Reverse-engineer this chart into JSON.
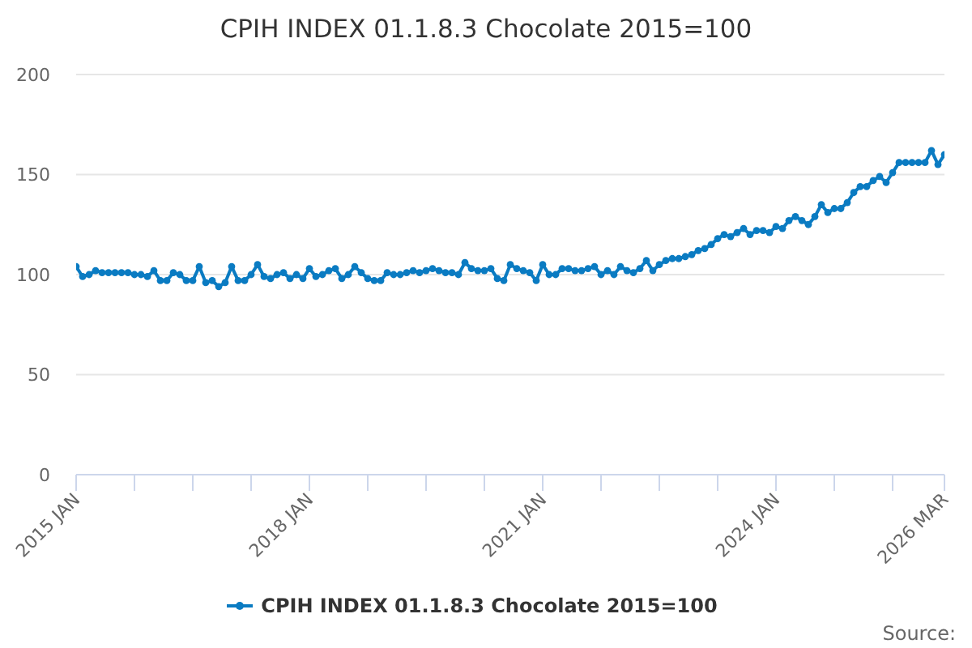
{
  "chart_data": {
    "type": "line",
    "title": "CPIH INDEX 01.1.8.3 Chocolate 2015=100",
    "x": [
      "2015-01",
      "2015-02",
      "2015-03",
      "2015-04",
      "2015-05",
      "2015-06",
      "2015-07",
      "2015-08",
      "2015-09",
      "2015-10",
      "2015-11",
      "2015-12",
      "2016-01",
      "2016-02",
      "2016-03",
      "2016-04",
      "2016-05",
      "2016-06",
      "2016-07",
      "2016-08",
      "2016-09",
      "2016-10",
      "2016-11",
      "2016-12",
      "2017-01",
      "2017-02",
      "2017-03",
      "2017-04",
      "2017-05",
      "2017-06",
      "2017-07",
      "2017-08",
      "2017-09",
      "2017-10",
      "2017-11",
      "2017-12",
      "2018-01",
      "2018-02",
      "2018-03",
      "2018-04",
      "2018-05",
      "2018-06",
      "2018-07",
      "2018-08",
      "2018-09",
      "2018-10",
      "2018-11",
      "2018-12",
      "2019-01",
      "2019-02",
      "2019-03",
      "2019-04",
      "2019-05",
      "2019-06",
      "2019-07",
      "2019-08",
      "2019-09",
      "2019-10",
      "2019-11",
      "2019-12",
      "2020-01",
      "2020-02",
      "2020-03",
      "2020-04",
      "2020-05",
      "2020-06",
      "2020-07",
      "2020-08",
      "2020-09",
      "2020-10",
      "2020-11",
      "2020-12",
      "2021-01",
      "2021-02",
      "2021-03",
      "2021-04",
      "2021-05",
      "2021-06",
      "2021-07",
      "2021-08",
      "2021-09",
      "2021-10",
      "2021-11",
      "2021-12",
      "2022-01",
      "2022-02",
      "2022-03",
      "2022-04",
      "2022-05",
      "2022-06",
      "2022-07",
      "2022-08",
      "2022-09",
      "2022-10",
      "2022-11",
      "2022-12",
      "2023-01",
      "2023-02",
      "2023-03",
      "2023-04",
      "2023-05",
      "2023-06",
      "2023-07",
      "2023-08",
      "2023-09",
      "2023-10",
      "2023-11",
      "2023-12",
      "2024-01",
      "2024-02",
      "2024-03",
      "2024-04",
      "2024-05",
      "2024-06",
      "2024-07",
      "2024-08",
      "2024-09",
      "2024-10",
      "2024-11",
      "2024-12",
      "2025-01",
      "2025-02",
      "2025-03",
      "2025-04",
      "2025-05",
      "2025-06",
      "2025-07",
      "2025-08",
      "2025-09",
      "2025-10",
      "2025-11",
      "2025-12",
      "2026-01",
      "2026-02",
      "2026-03"
    ],
    "series": [
      {
        "name": "CPIH INDEX 01.1.8.3 Chocolate 2015=100",
        "color": "#0a7bc2",
        "values": [
          104,
          99,
          100,
          102,
          101,
          101,
          101,
          101,
          101,
          100,
          100,
          99,
          102,
          97,
          97,
          101,
          100,
          97,
          97,
          104,
          96,
          97,
          94,
          96,
          104,
          97,
          97,
          100,
          105,
          99,
          98,
          100,
          101,
          98,
          100,
          98,
          103,
          99,
          100,
          102,
          103,
          98,
          100,
          104,
          101,
          98,
          97,
          97,
          101,
          100,
          100,
          101,
          102,
          101,
          102,
          103,
          102,
          101,
          101,
          100,
          106,
          103,
          102,
          102,
          103,
          98,
          97,
          105,
          103,
          102,
          101,
          97,
          105,
          100,
          100,
          103,
          103,
          102,
          102,
          103,
          104,
          100,
          102,
          100,
          104,
          102,
          101,
          103,
          107,
          102,
          105,
          107,
          108,
          108,
          109,
          110,
          112,
          113,
          115,
          118,
          120,
          119,
          121,
          123,
          120,
          122,
          122,
          121,
          124,
          123,
          127,
          129,
          127,
          125,
          129,
          135,
          131,
          133,
          133,
          136,
          141,
          144,
          144,
          147,
          149,
          146,
          151,
          156,
          156,
          156,
          156,
          156,
          162,
          155,
          160
        ]
      }
    ],
    "xlim": [
      "2015-01",
      "2026-03"
    ],
    "xticks": [
      {
        "value": "2015-01",
        "label": "2015 JAN"
      },
      {
        "value": "2015-10",
        "label": null
      },
      {
        "value": "2016-07",
        "label": null
      },
      {
        "value": "2017-04",
        "label": null
      },
      {
        "value": "2018-01",
        "label": "2018 JAN"
      },
      {
        "value": "2018-10",
        "label": null
      },
      {
        "value": "2019-07",
        "label": null
      },
      {
        "value": "2020-04",
        "label": null
      },
      {
        "value": "2021-01",
        "label": "2021 JAN"
      },
      {
        "value": "2021-10",
        "label": null
      },
      {
        "value": "2022-07",
        "label": null
      },
      {
        "value": "2023-04",
        "label": null
      },
      {
        "value": "2024-01",
        "label": "2024 JAN"
      },
      {
        "value": "2024-10",
        "label": null
      },
      {
        "value": "2025-07",
        "label": null
      },
      {
        "value": "2026-03",
        "label": "2026 MAR"
      }
    ],
    "ylim": [
      0,
      200
    ],
    "yticks": [
      0,
      50,
      100,
      150,
      200
    ],
    "grid": "y",
    "legend": "bottom",
    "marker": "circle",
    "line_style": "solid",
    "annotations": [
      "Source:"
    ]
  }
}
